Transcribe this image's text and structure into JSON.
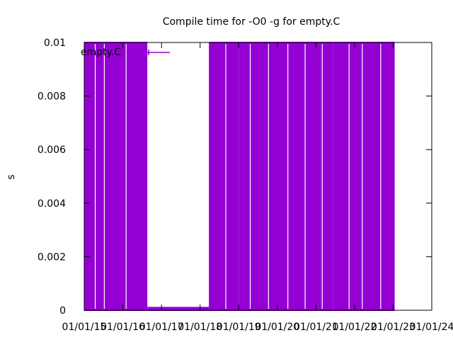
{
  "chart_data": {
    "type": "line",
    "title": "Compile time for -O0 -g for empty.C",
    "xlabel": "",
    "ylabel": "s",
    "ylim": [
      0,
      0.01
    ],
    "yticks": [
      "0",
      "0.002",
      "0.004",
      "0.006",
      "0.008",
      "0.01"
    ],
    "xlim": [
      "2015-01-01",
      "2024-01-01"
    ],
    "xticks": [
      "01/01/15",
      "01/01/16",
      "01/01/17",
      "01/01/18",
      "01/01/19",
      "01/01/20",
      "01/01/21",
      "01/01/22",
      "01/01/23",
      "01/01/24"
    ],
    "grid": false,
    "legend_position": "top-left",
    "series": [
      {
        "name": "empty.C",
        "color": "#9400d3",
        "segments": [
          {
            "from": "2015-01-01",
            "to": "2016-08-20",
            "low": 0.0,
            "high": 0.01
          },
          {
            "from": "2016-08-20",
            "to": "2018-03-25",
            "low": 0.0,
            "high": 0.0001
          },
          {
            "from": "2018-03-25",
            "to": "2019-01-01",
            "low": 0.0,
            "high": 0.01
          },
          {
            "from": "2019-01-01",
            "to": "2020-06-01",
            "low": 0.0,
            "high": 0.01
          },
          {
            "from": "2020-06-01",
            "to": "2021-06-10",
            "low": 0.0,
            "high": 0.01
          },
          {
            "from": "2021-06-10",
            "to": "2023-01-15",
            "low": 0.0,
            "high": 0.01
          }
        ]
      }
    ]
  }
}
